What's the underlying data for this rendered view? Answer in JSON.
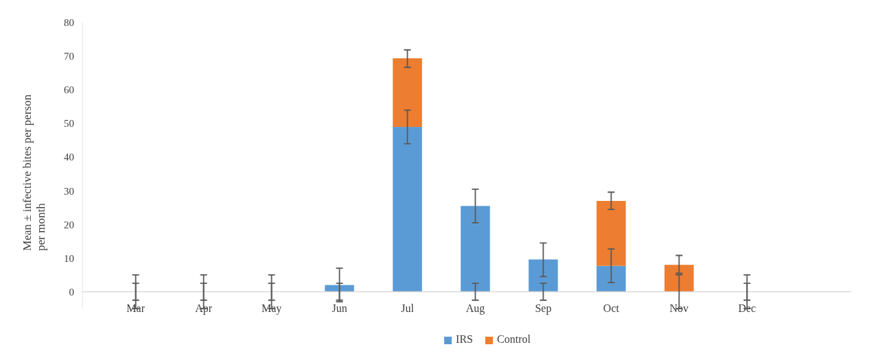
{
  "chart_data": {
    "type": "bar",
    "stacked": true,
    "ylabel": "Mean ± infective bites per person per month",
    "categories": [
      "Mar",
      "Apr",
      "May",
      "Jun",
      "Jul",
      "Aug",
      "Sep",
      "Oct",
      "Nov",
      "Dec"
    ],
    "ylim": [
      -5,
      80
    ],
    "yticks": [
      0,
      10,
      20,
      30,
      40,
      50,
      60,
      70,
      80
    ],
    "grid": false,
    "legend": "bottom",
    "series": [
      {
        "name": "IRS",
        "color": "#5b9bd5",
        "values": [
          0,
          0,
          0,
          2,
          49,
          25.5,
          9.6,
          7.7,
          0,
          0
        ],
        "errors": [
          [
            -5,
            5
          ],
          [
            -5,
            5
          ],
          [
            -5,
            5
          ],
          [
            -3,
            7
          ],
          [
            44,
            54
          ],
          [
            20.5,
            30.5
          ],
          [
            4.5,
            14.5
          ],
          [
            2.7,
            12.7
          ],
          [
            -5,
            5
          ],
          [
            -5,
            5
          ]
        ]
      },
      {
        "name": "Control",
        "color": "#ed7d31",
        "values": [
          0,
          0,
          0,
          0,
          20.4,
          0,
          0,
          19.3,
          8,
          0
        ],
        "errors": [
          [
            -2.5,
            2.5
          ],
          [
            -2.5,
            2.5
          ],
          [
            -2.5,
            2.5
          ],
          [
            -2.5,
            2.5
          ],
          [
            66.7,
            71.9
          ],
          [
            -2.5,
            2.5
          ],
          [
            -2.5,
            2.5
          ],
          [
            24.5,
            29.6
          ],
          [
            5.5,
            10.8
          ],
          [
            -2.5,
            2.5
          ]
        ]
      }
    ]
  }
}
